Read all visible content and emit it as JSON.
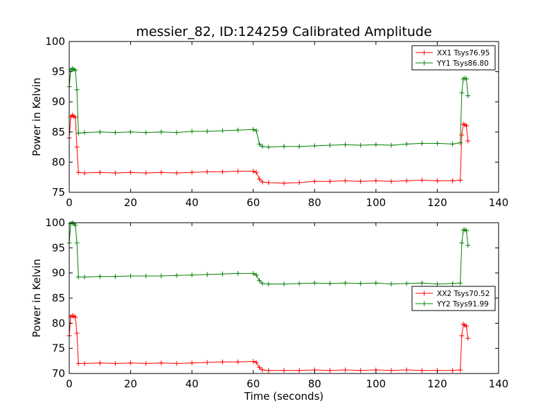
{
  "figure": {
    "title": "messier_82, ID:124259 Calibrated Amplitude"
  },
  "chart_data": [
    {
      "type": "line",
      "ylabel": "Power in Kelvin",
      "xlabel": "",
      "xlim": [
        0,
        140
      ],
      "ylim": [
        75,
        100
      ],
      "xticks": [
        0,
        20,
        40,
        60,
        80,
        100,
        120,
        140
      ],
      "yticks": [
        75,
        80,
        85,
        90,
        95,
        100
      ],
      "legend_position": "top-right",
      "series": [
        {
          "name": "XX1 Tsys76.95",
          "color": "#ff0000",
          "marker": "plus",
          "x": [
            0,
            0.5,
            1,
            1.5,
            2,
            2.5,
            3,
            5,
            10,
            15,
            20,
            25,
            30,
            35,
            40,
            45,
            50,
            55,
            60,
            61,
            62,
            63,
            65,
            70,
            75,
            80,
            85,
            90,
            95,
            100,
            105,
            110,
            115,
            120,
            125,
            127.5,
            128,
            128.5,
            129,
            129.5,
            130
          ],
          "values": [
            84.0,
            87.5,
            87.8,
            87.6,
            87.4,
            82.5,
            78.3,
            78.2,
            78.3,
            78.2,
            78.3,
            78.2,
            78.3,
            78.2,
            78.3,
            78.4,
            78.4,
            78.5,
            78.5,
            78.3,
            77.2,
            76.7,
            76.6,
            76.5,
            76.6,
            76.8,
            76.8,
            76.9,
            76.8,
            76.9,
            76.8,
            76.9,
            77.0,
            76.9,
            76.9,
            77.0,
            84.5,
            86.3,
            86.2,
            86.0,
            83.5
          ]
        },
        {
          "name": "YY1 Tsys86.80",
          "color": "#008000",
          "marker": "plus",
          "x": [
            0,
            0.5,
            1,
            1.5,
            2,
            2.5,
            3,
            5,
            10,
            15,
            20,
            25,
            30,
            35,
            40,
            45,
            50,
            55,
            60,
            61,
            62,
            63,
            65,
            70,
            75,
            80,
            85,
            90,
            95,
            100,
            105,
            110,
            115,
            120,
            125,
            127.5,
            128,
            128.5,
            129,
            129.5,
            130
          ],
          "values": [
            92.5,
            95.3,
            95.5,
            95.4,
            95.2,
            92.0,
            84.8,
            84.9,
            85.0,
            84.9,
            85.0,
            84.9,
            85.0,
            84.9,
            85.1,
            85.1,
            85.2,
            85.3,
            85.4,
            85.2,
            83.0,
            82.6,
            82.5,
            82.6,
            82.6,
            82.7,
            82.8,
            82.9,
            82.8,
            82.9,
            82.8,
            83.0,
            83.1,
            83.1,
            83.0,
            83.2,
            91.5,
            93.8,
            93.9,
            93.8,
            91.0
          ]
        }
      ]
    },
    {
      "type": "line",
      "ylabel": "Power in Kelvin",
      "xlabel": "Time (seconds)",
      "xlim": [
        0,
        140
      ],
      "ylim": [
        70,
        100
      ],
      "xticks": [
        0,
        20,
        40,
        60,
        80,
        100,
        120,
        140
      ],
      "yticks": [
        70,
        75,
        80,
        85,
        90,
        95,
        100
      ],
      "legend_position": "center-right",
      "series": [
        {
          "name": "XX2 Tsys70.52",
          "color": "#ff0000",
          "marker": "plus",
          "x": [
            0,
            0.5,
            1,
            1.5,
            2,
            2.5,
            3,
            5,
            10,
            15,
            20,
            25,
            30,
            35,
            40,
            45,
            50,
            55,
            60,
            61,
            62,
            63,
            65,
            70,
            75,
            80,
            85,
            90,
            95,
            100,
            105,
            110,
            115,
            120,
            125,
            127.5,
            128,
            128.5,
            129,
            129.5,
            130
          ],
          "values": [
            77.5,
            81.3,
            81.5,
            81.4,
            81.2,
            78.0,
            72.0,
            72.0,
            72.1,
            72.0,
            72.1,
            72.0,
            72.1,
            72.0,
            72.1,
            72.2,
            72.3,
            72.3,
            72.4,
            72.2,
            71.2,
            70.7,
            70.6,
            70.6,
            70.6,
            70.7,
            70.6,
            70.7,
            70.6,
            70.7,
            70.6,
            70.7,
            70.6,
            70.6,
            70.6,
            70.7,
            77.5,
            79.8,
            79.6,
            79.4,
            77.0
          ]
        },
        {
          "name": "YY2 Tsys91.99",
          "color": "#008000",
          "marker": "plus",
          "x": [
            0,
            0.5,
            1,
            1.5,
            2,
            2.5,
            3,
            5,
            10,
            15,
            20,
            25,
            30,
            35,
            40,
            45,
            50,
            55,
            60,
            61,
            62,
            63,
            65,
            70,
            75,
            80,
            85,
            90,
            95,
            100,
            105,
            110,
            115,
            120,
            125,
            127.5,
            128,
            128.5,
            129,
            129.5,
            130
          ],
          "values": [
            96.0,
            99.8,
            100.0,
            99.8,
            99.5,
            96.0,
            89.2,
            89.2,
            89.3,
            89.3,
            89.4,
            89.4,
            89.4,
            89.5,
            89.6,
            89.7,
            89.8,
            89.9,
            89.9,
            89.6,
            88.5,
            87.9,
            87.8,
            87.8,
            87.9,
            88.0,
            87.9,
            88.0,
            87.9,
            88.0,
            87.8,
            87.9,
            88.0,
            87.8,
            87.9,
            88.0,
            96.0,
            98.5,
            98.6,
            98.4,
            95.5
          ]
        }
      ]
    }
  ]
}
